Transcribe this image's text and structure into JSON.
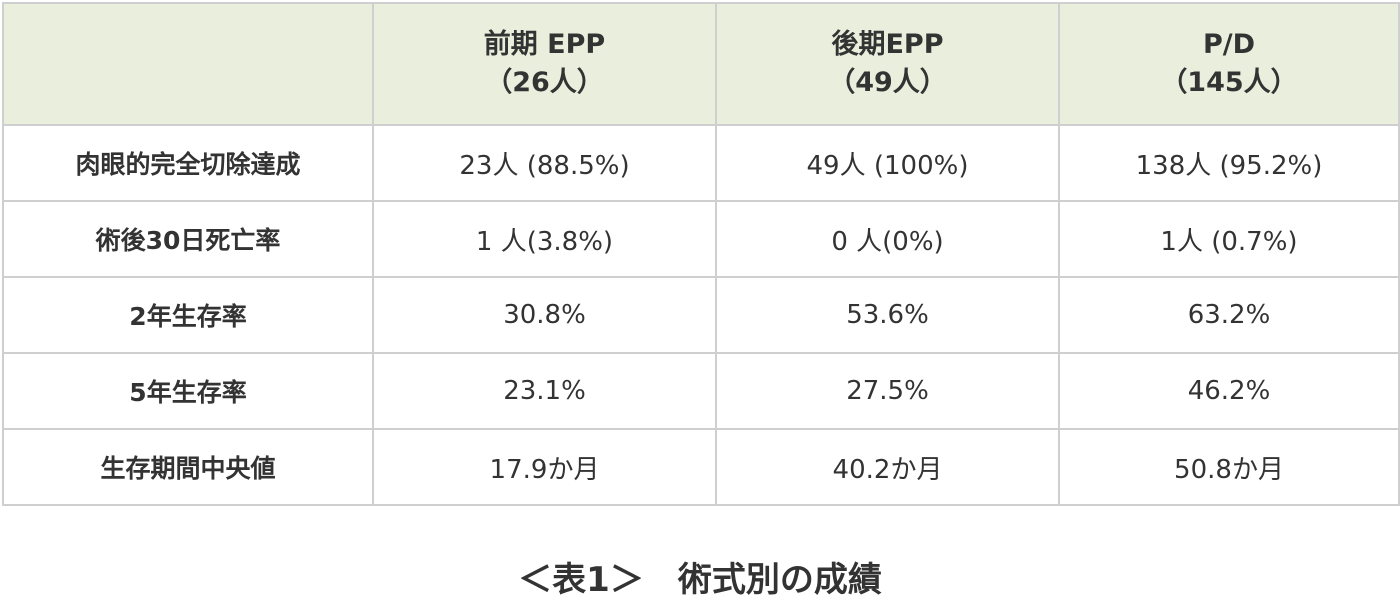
{
  "table": {
    "header": [
      {
        "lines": [
          "前期 EPP",
          "（26人）"
        ]
      },
      {
        "lines": [
          "後期EPP",
          "（49人）"
        ]
      },
      {
        "lines": [
          "P/D",
          "（145人）"
        ]
      }
    ],
    "rows": [
      [
        "肉眼的完全切除達成",
        "23人 (88.5%)",
        "49人 (100%)",
        "138人 (95.2%)"
      ],
      [
        "術後30日死亡率",
        "1 人(3.8%)",
        "0 人(0%)",
        "1人 (0.7%)"
      ],
      [
        "2年生存率",
        "30.8%",
        "53.6%",
        "63.2%"
      ],
      [
        "5年生存率",
        "23.1%",
        "27.5%",
        "46.2%"
      ],
      [
        "生存期間中央値",
        "17.9か月",
        "40.2か月",
        "50.8か月"
      ]
    ]
  },
  "caption": "＜表1＞　術式別の成績"
}
